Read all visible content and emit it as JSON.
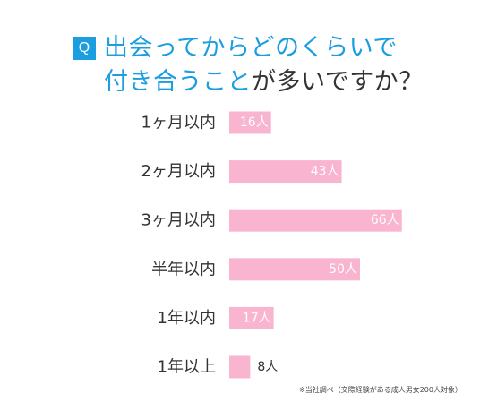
{
  "badge": "Q",
  "title": {
    "line1": "出会ってからどのくらいで",
    "line2_part1": "付き合うこと",
    "line2_part2": "が多いですか？"
  },
  "colors": {
    "accent": "#1a9ee0",
    "bar": "#f9b5d0",
    "bar_label_inside": "#ffffff",
    "bar_label_outside": "#333333",
    "category_text": "#333333"
  },
  "chart_data": {
    "type": "bar",
    "orientation": "horizontal",
    "categories": [
      "1ヶ月以内",
      "2ヶ月以内",
      "3ヶ月以内",
      "半年以内",
      "1年以内",
      "1年以上"
    ],
    "values": [
      16,
      43,
      66,
      50,
      17,
      8
    ],
    "data_labels": [
      "16人",
      "43人",
      "66人",
      "50人",
      "17人",
      "8人"
    ],
    "unit": "人",
    "xlabel": "",
    "ylabel": "",
    "grid": false,
    "legend": false
  },
  "footnote": "※当社調べ（交際経験がある成人男女200人対象）"
}
